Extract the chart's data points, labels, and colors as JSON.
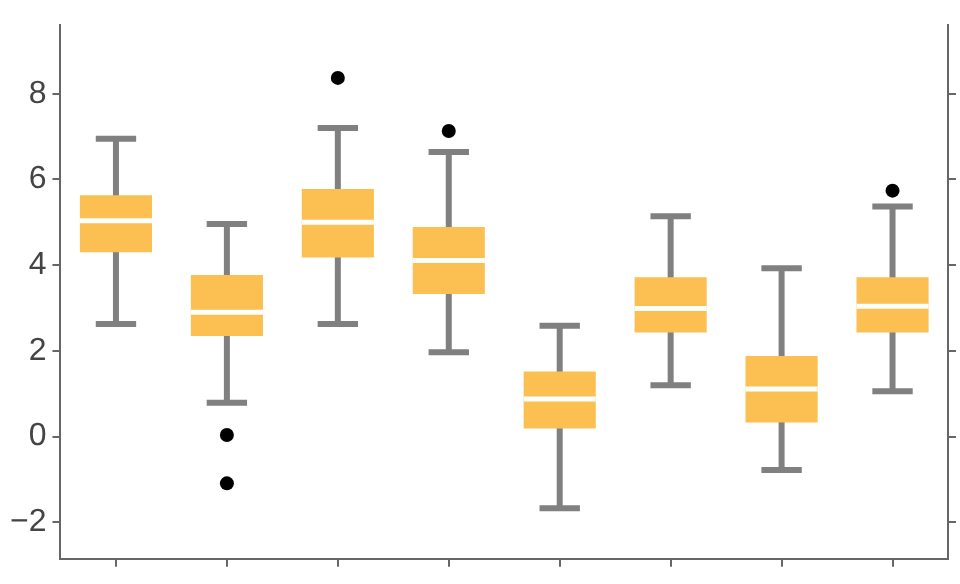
{
  "chart_data": {
    "type": "box",
    "categories": [
      null,
      null,
      null,
      null,
      null,
      null,
      null,
      null
    ],
    "series": [
      {
        "color": "#fbbf52",
        "boxes": [
          {
            "low": 2.63,
            "q1": 4.3,
            "median": 5.04,
            "q3": 5.63,
            "high": 6.95
          },
          {
            "low": 0.79,
            "q1": 2.35,
            "median": 2.9,
            "q3": 3.77,
            "high": 4.96,
            "outliers": [
              0.04,
              -1.09
            ]
          },
          {
            "low": 2.63,
            "q1": 4.18,
            "median": 5.0,
            "q3": 5.78,
            "high": 7.2,
            "outliers": [
              8.37
            ]
          },
          {
            "low": 1.97,
            "q1": 3.33,
            "median": 4.11,
            "q3": 4.89,
            "high": 6.64,
            "outliers": [
              7.13
            ]
          },
          {
            "low": -1.67,
            "q1": 0.19,
            "median": 0.88,
            "q3": 1.52,
            "high": 2.59
          },
          {
            "low": 1.2,
            "q1": 2.43,
            "median": 2.99,
            "q3": 3.72,
            "high": 5.14
          },
          {
            "low": -0.78,
            "q1": 0.33,
            "median": 1.11,
            "q3": 1.88,
            "high": 3.93
          },
          {
            "low": 1.06,
            "q1": 2.43,
            "median": 3.04,
            "q3": 3.72,
            "high": 5.37,
            "outliers": [
              5.74
            ]
          }
        ]
      }
    ],
    "ylim": [
      -2.85,
      9.6
    ],
    "yticks": [
      {
        "value": -2,
        "label": "−2"
      },
      0,
      2,
      4,
      6,
      8
    ],
    "grid": false,
    "tick_labels": "y"
  }
}
